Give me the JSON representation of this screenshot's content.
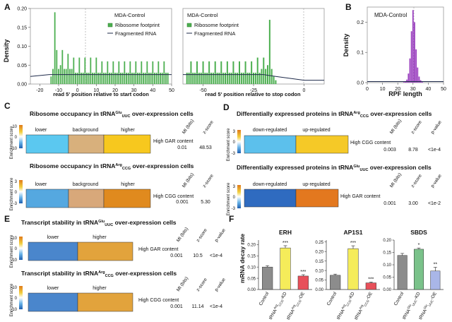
{
  "panel_labels": {
    "A": "A",
    "B": "B",
    "C": "C",
    "D": "D",
    "E": "E",
    "F": "F"
  },
  "panelA": {
    "ylabel": "Density",
    "left": {
      "xlabel": "read 5' position relative to start codon",
      "xticks": [
        "-20",
        "-10",
        "0",
        "10",
        "20",
        "30",
        "40",
        "50"
      ],
      "yticks": [
        "0.00",
        "0.05",
        "0.10",
        "0.15",
        "0.20"
      ],
      "legend_title": "MDA-Control",
      "legend_items": [
        "Ribosome footprint",
        "Fragmented RNA"
      ]
    },
    "right": {
      "xlabel": "read 5' position relative to stop codon",
      "xticks": [
        "-50",
        "-25",
        "0"
      ],
      "yticks": [
        "0.00",
        "0.05",
        "0.10",
        "0.15",
        "0.20"
      ],
      "legend_title": "MDA-Control",
      "legend_items": [
        "Ribosome footprint",
        "Fragmented RNA"
      ]
    }
  },
  "panelB": {
    "title": "MDA-Control",
    "xlabel": "RPF length",
    "ylabel": "Density",
    "xticks": [
      "0",
      "10",
      "20",
      "30",
      "40",
      "50"
    ],
    "yticks": [
      "0.0",
      "0.1",
      "0.2"
    ]
  },
  "panelC": {
    "title1": "Ribosome occupancy in tRNA",
    "title1_sup": "Glu",
    "title1_sub": "UUC",
    "title1_suffix": " over-expression cells",
    "title2": "Ribosome occupancy in tRNA",
    "title2_sup": "Arg",
    "title2_sub": "CCG",
    "title2_suffix": " over-expression cells",
    "enrich_label": "Enrichment score",
    "bar1": {
      "labels": [
        "lower",
        "background",
        "higher"
      ],
      "colors": [
        "#5bc8f0",
        "#d8b07c",
        "#f7c81e"
      ],
      "scale": [
        "10",
        "0",
        "-10"
      ],
      "content": "High GAR content",
      "mi": "0.01",
      "z": "48.53"
    },
    "bar2": {
      "labels": [
        "lower",
        "background",
        "higher"
      ],
      "colors": [
        "#55a8e0",
        "#d8a87a",
        "#e08a1e"
      ],
      "scale": [
        "3",
        "0",
        "-3"
      ],
      "content": "High CGG content",
      "mi": "0.001",
      "z": "5.30"
    },
    "col_mi": "MI (bits)",
    "col_z": "z-score"
  },
  "panelD": {
    "title1": "Differentially expressed proteins in tRNA",
    "title1_sup": "Arg",
    "title1_sub": "CCG",
    "title1_suffix": " over-expression cells",
    "title2": "Differentially expressed proteins in tRNA",
    "title2_sup": "Glu",
    "title2_sub": "UUC",
    "title2_suffix": " over-expression cells",
    "enrich_label": "Enrichment score",
    "bar1": {
      "labels": [
        "down-regulated",
        "up-regulated"
      ],
      "colors": [
        "#5cc0ec",
        "#f5c927"
      ],
      "scale": [
        "3",
        "0",
        "-3"
      ],
      "content": "High CGG content",
      "mi": "0.003",
      "z": "8.78",
      "p": "<1e-4"
    },
    "bar2": {
      "labels": [
        "down-regulated",
        "up-regulated"
      ],
      "colors": [
        "#2f6bc0",
        "#e3781f"
      ],
      "scale": [
        "3",
        "0",
        "-3"
      ],
      "content": "High GAR content",
      "mi": "0.001",
      "z": "3.00",
      "p": "<1e-2"
    },
    "col_mi": "MI (bits)",
    "col_z": "z-score",
    "col_p": "p-value"
  },
  "panelE": {
    "title1": "Transcript stability in tRNA",
    "title1_sup": "Glu",
    "title1_sub": "UUC",
    "title1_suffix": " over-expression cells",
    "title2": "Transcript stability in tRNA",
    "title2_sup": "Arg",
    "title2_sub": "CCG",
    "title2_suffix": " over-expression cells",
    "enrich_label": "Enrichment score",
    "bar1": {
      "labels": [
        "lower",
        "higher"
      ],
      "colors": [
        "#4a86cc",
        "#e2a33c"
      ],
      "scale": [
        "10",
        "0",
        "-10"
      ],
      "content": "High GAR content",
      "mi": "0.001",
      "z": "10.5",
      "p": "<1e-4"
    },
    "bar2": {
      "labels": [
        "lower",
        "higher"
      ],
      "colors": [
        "#4a86cc",
        "#e2a33c"
      ],
      "scale": [
        "10",
        "0",
        "-10"
      ],
      "content": "High CGG content",
      "mi": "0.001",
      "z": "11.14",
      "p": "<1e-4"
    },
    "col_mi": "MI (bits)",
    "col_z": "z-score",
    "col_p": "p-value"
  },
  "panelF": {
    "ylabel": "mRNA decay rate",
    "charts": [
      {
        "title": "ERH",
        "yticks": [
          "0.00",
          "0.05",
          "0.10",
          "0.15",
          "0.20"
        ],
        "ylim": [
          0,
          0.22
        ],
        "categories": [
          "Control",
          "tRNA-Arg-CCG-KD",
          "tRNA-Arg-CCG-OE"
        ],
        "xlabels": [
          {
            "main": "Control"
          },
          {
            "main": "tRNA",
            "sup": "Arg",
            "sub": "CCG",
            "tail": "-KD"
          },
          {
            "main": "tRNA",
            "sup": "Arg",
            "sub": "CCG",
            "tail": "-OE"
          }
        ],
        "values": [
          0.1,
          0.185,
          0.06
        ],
        "errors": [
          0.006,
          0.01,
          0.006
        ],
        "stars": [
          "",
          "***",
          "***"
        ],
        "colors": [
          "#8c8c8c",
          "#f5ec5a",
          "#e8505a"
        ]
      },
      {
        "title": "AP1S1",
        "yticks": [
          "0.00",
          "0.05",
          "0.10",
          "0.15",
          "0.20",
          "0.25"
        ],
        "ylim": [
          0,
          0.26
        ],
        "categories": [
          "Control",
          "tRNA-Arg-CCG-KD",
          "tRNA-Arg-CCG-OE"
        ],
        "xlabels": [
          {
            "main": "Control"
          },
          {
            "main": "tRNA",
            "sup": "Arg",
            "sub": "CCG",
            "tail": "-KD"
          },
          {
            "main": "tRNA",
            "sup": "Arg",
            "sub": "CCG",
            "tail": "-OE"
          }
        ],
        "values": [
          0.075,
          0.215,
          0.035
        ],
        "errors": [
          0.006,
          0.015,
          0.004
        ],
        "stars": [
          "",
          "***",
          "***"
        ],
        "colors": [
          "#8c8c8c",
          "#f5ec5a",
          "#e8505a"
        ]
      },
      {
        "title": "SBDS",
        "yticks": [
          "0.00",
          "0.05",
          "0.10",
          "0.15",
          "0.20"
        ],
        "ylim": [
          0,
          0.2
        ],
        "categories": [
          "Control",
          "tRNA-Glu-UUC-KD",
          "tRNA-Glu-UUC-OE"
        ],
        "xlabels": [
          {
            "main": "Control"
          },
          {
            "main": "tRNA",
            "sup": "Glu",
            "sub": "UUC",
            "tail": "-KD"
          },
          {
            "main": "tRNA",
            "sup": "Glu",
            "sub": "UUC",
            "tail": "-OE"
          }
        ],
        "values": [
          0.138,
          0.163,
          0.075
        ],
        "errors": [
          0.008,
          0.005,
          0.015
        ],
        "stars": [
          "",
          "*",
          "**"
        ],
        "colors": [
          "#8c8c8c",
          "#7ac28a",
          "#a9b6e8"
        ]
      }
    ]
  },
  "chart_data": [
    {
      "type": "bar",
      "title": "MDA-Control",
      "xlabel": "RPF length",
      "ylabel": "Density",
      "xlim": [
        0,
        50
      ],
      "ylim": [
        0,
        0.25
      ],
      "x": [
        24,
        25,
        26,
        27,
        28,
        29,
        30,
        31,
        32,
        33,
        34,
        35,
        36
      ],
      "values": [
        0.002,
        0.005,
        0.01,
        0.03,
        0.08,
        0.17,
        0.24,
        0.2,
        0.11,
        0.05,
        0.02,
        0.008,
        0.003
      ]
    },
    {
      "type": "bar",
      "title": "MDA-Control",
      "xlabel": "read 5' position relative to start codon",
      "ylabel": "Density",
      "xlim": [
        -25,
        50
      ],
      "ylim": [
        0,
        0.2
      ],
      "series": [
        {
          "name": "Ribosome footprint",
          "x": [
            -14,
            -13,
            -12,
            -11,
            -10,
            -9,
            -8,
            -7,
            -6,
            -5,
            -4,
            -3,
            -2,
            -1,
            0,
            1,
            2,
            3,
            4,
            5,
            6,
            7,
            8,
            9,
            10,
            11,
            12,
            13,
            14,
            15,
            16,
            17,
            18,
            19,
            20,
            21,
            22,
            23,
            24,
            25,
            26,
            27,
            28,
            29,
            30,
            31,
            32,
            33,
            34,
            35,
            36,
            37,
            38,
            39,
            40,
            41,
            42,
            43,
            44,
            45,
            46,
            47,
            48
          ],
          "values": [
            0.02,
            0.04,
            0.19,
            0.09,
            0.04,
            0.05,
            0.09,
            0.04,
            0.04,
            0.08,
            0.04,
            0.04,
            0.07,
            0.03,
            0.03,
            0.07,
            0.03,
            0.03,
            0.07,
            0.03,
            0.03,
            0.07,
            0.03,
            0.03,
            0.07,
            0.03,
            0.03,
            0.06,
            0.03,
            0.03,
            0.06,
            0.03,
            0.03,
            0.06,
            0.03,
            0.03,
            0.06,
            0.03,
            0.03,
            0.06,
            0.03,
            0.03,
            0.06,
            0.03,
            0.03,
            0.06,
            0.03,
            0.03,
            0.06,
            0.03,
            0.03,
            0.06,
            0.03,
            0.03,
            0.06,
            0.03,
            0.03,
            0.06,
            0.03,
            0.03,
            0.06,
            0.03,
            0.03
          ]
        },
        {
          "name": "Fragmented RNA",
          "x": [
            -25,
            -15,
            0,
            15,
            30,
            50
          ],
          "values": [
            0.02,
            0.025,
            0.025,
            0.025,
            0.025,
            0.025
          ]
        }
      ]
    },
    {
      "type": "bar",
      "title": "MDA-Control",
      "xlabel": "read 5' position relative to stop codon",
      "ylabel": "Density",
      "xlim": [
        -60,
        10
      ],
      "ylim": [
        0,
        0.2
      ],
      "series": [
        {
          "name": "Ribosome footprint",
          "x": [
            -58,
            -57,
            -56,
            -55,
            -54,
            -53,
            -52,
            -51,
            -50,
            -49,
            -48,
            -47,
            -46,
            -45,
            -44,
            -43,
            -42,
            -41,
            -40,
            -39,
            -38,
            -37,
            -36,
            -35,
            -34,
            -33,
            -32,
            -31,
            -30,
            -29,
            -28,
            -27,
            -26,
            -25,
            -24,
            -23,
            -22,
            -21,
            -20,
            -19,
            -18,
            -17,
            -16,
            -15,
            -14
          ],
          "values": [
            0.03,
            0.03,
            0.06,
            0.03,
            0.03,
            0.06,
            0.03,
            0.03,
            0.06,
            0.03,
            0.03,
            0.06,
            0.03,
            0.03,
            0.06,
            0.03,
            0.03,
            0.06,
            0.03,
            0.03,
            0.06,
            0.03,
            0.03,
            0.06,
            0.03,
            0.03,
            0.06,
            0.03,
            0.03,
            0.06,
            0.03,
            0.03,
            0.06,
            0.03,
            0.03,
            0.07,
            0.03,
            0.04,
            0.07,
            0.04,
            0.05,
            0.17,
            0.04,
            0.02,
            0.01
          ]
        },
        {
          "name": "Fragmented RNA",
          "x": [
            -60,
            -40,
            -20,
            -14,
            0,
            10
          ],
          "values": [
            0.025,
            0.025,
            0.025,
            0.02,
            0.01,
            0.01
          ]
        }
      ]
    },
    {
      "type": "bar",
      "title": "ERH",
      "ylabel": "mRNA decay rate",
      "categories": [
        "Control",
        "tRNA-Arg-CCG-KD",
        "tRNA-Arg-CCG-OE"
      ],
      "values": [
        0.1,
        0.185,
        0.06
      ],
      "ylim": [
        0,
        0.22
      ]
    },
    {
      "type": "bar",
      "title": "AP1S1",
      "ylabel": "mRNA decay rate",
      "categories": [
        "Control",
        "tRNA-Arg-CCG-KD",
        "tRNA-Arg-CCG-OE"
      ],
      "values": [
        0.075,
        0.215,
        0.035
      ],
      "ylim": [
        0,
        0.26
      ]
    },
    {
      "type": "bar",
      "title": "SBDS",
      "ylabel": "mRNA decay rate",
      "categories": [
        "Control",
        "tRNA-Glu-UUC-KD",
        "tRNA-Glu-UUC-OE"
      ],
      "values": [
        0.138,
        0.163,
        0.075
      ],
      "ylim": [
        0,
        0.2
      ]
    }
  ]
}
